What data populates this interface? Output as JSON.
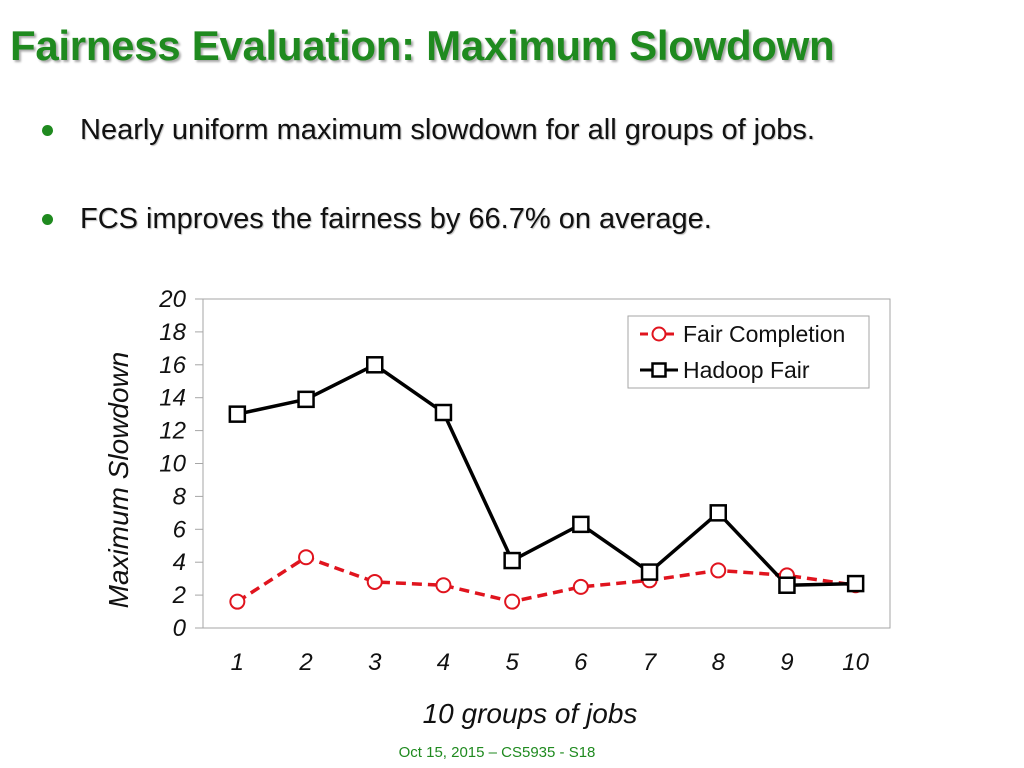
{
  "slide": {
    "title": "Fairness Evaluation: Maximum Slowdown",
    "bullets": [
      "Nearly uniform maximum slowdown for all groups of jobs.",
      "FCS improves the fairness by 66.7% on average."
    ],
    "footer": "Oct 15, 2015 – CS5935 - S18"
  },
  "colors": {
    "title": "#1f8a1f",
    "fair_completion": "#e0141e",
    "hadoop_fair": "#000000"
  },
  "chart_data": {
    "type": "line",
    "title": "",
    "xlabel": "10 groups of jobs",
    "ylabel": "Maximum Slowdown",
    "categories": [
      "1",
      "2",
      "3",
      "4",
      "5",
      "6",
      "7",
      "8",
      "9",
      "10"
    ],
    "ylim": [
      0,
      20
    ],
    "yticks": [
      "0",
      "2",
      "4",
      "6",
      "8",
      "10",
      "12",
      "14",
      "16",
      "18",
      "20"
    ],
    "legend_position": "top-right",
    "series": [
      {
        "name": "Fair Completion",
        "marker": "circle",
        "line": "dashed",
        "values": [
          1.6,
          4.3,
          2.8,
          2.6,
          1.6,
          2.5,
          2.9,
          3.5,
          3.2,
          2.6
        ]
      },
      {
        "name": "Hadoop Fair",
        "marker": "square",
        "line": "solid",
        "values": [
          13,
          13.9,
          16,
          13.1,
          4.1,
          6.3,
          3.4,
          7.0,
          2.6,
          2.7
        ]
      }
    ]
  }
}
